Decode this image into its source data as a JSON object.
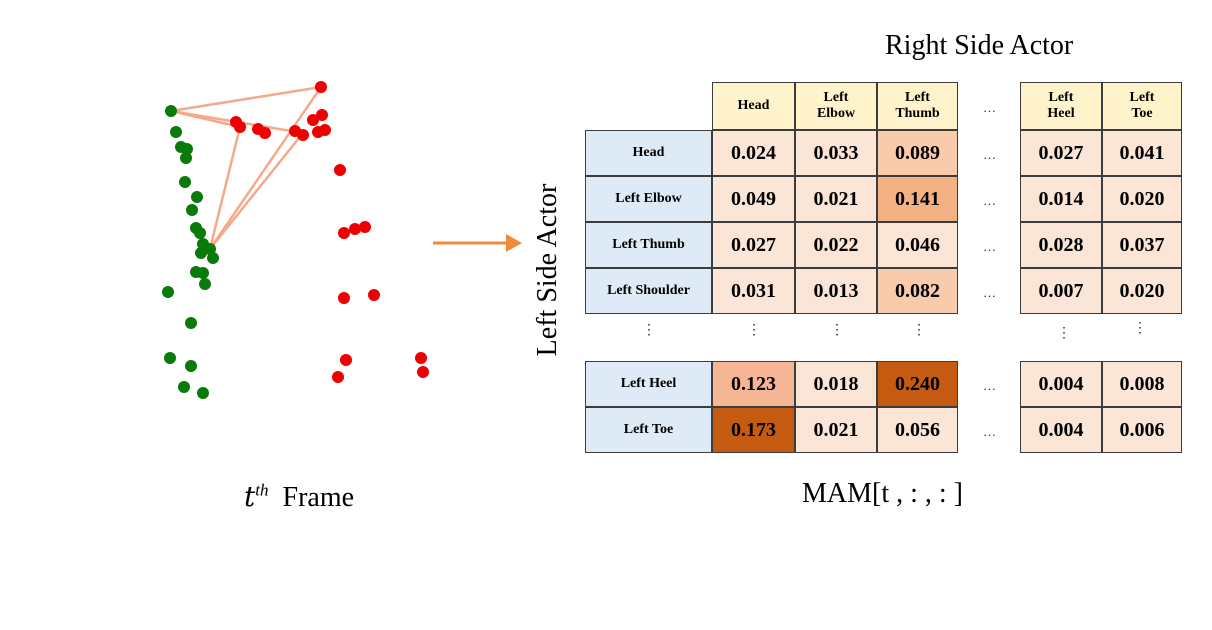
{
  "colors": {
    "left_actor": "#0a7a0a",
    "right_actor": "#ee0000",
    "link": "#f5a98a",
    "arrow": "#ee8a3c",
    "header_bg": "#fff3cc",
    "rowlabel_bg": "#deebf6"
  },
  "frame_label": {
    "var": "t",
    "sup": "th",
    "word": "Frame"
  },
  "right_title": "Right Side Actor",
  "left_title": "Left Side Actor",
  "mam_label": "MAM[t , : , : ]",
  "ellipsis": "…",
  "vellipsis": "⋮",
  "columns": [
    "Head",
    "Left\nElbow",
    "Left\nThumb",
    "Left\nHeel",
    "Left\nToe"
  ],
  "rows": [
    {
      "label": "Head",
      "values": [
        "0.024",
        "0.033",
        "0.089",
        "0.027",
        "0.041"
      ]
    },
    {
      "label": "Left Elbow",
      "values": [
        "0.049",
        "0.021",
        "0.141",
        "0.014",
        "0.020"
      ]
    },
    {
      "label": "Left Thumb",
      "values": [
        "0.027",
        "0.022",
        "0.046",
        "0.028",
        "0.037"
      ]
    },
    {
      "label": "Left Shoulder",
      "values": [
        "0.031",
        "0.013",
        "0.082",
        "0.007",
        "0.020"
      ]
    },
    {
      "label": "Left Heel",
      "values": [
        "0.123",
        "0.018",
        "0.240",
        "0.004",
        "0.008"
      ]
    },
    {
      "label": "Left Toe",
      "values": [
        "0.173",
        "0.021",
        "0.056",
        "0.004",
        "0.006"
      ]
    }
  ]
}
